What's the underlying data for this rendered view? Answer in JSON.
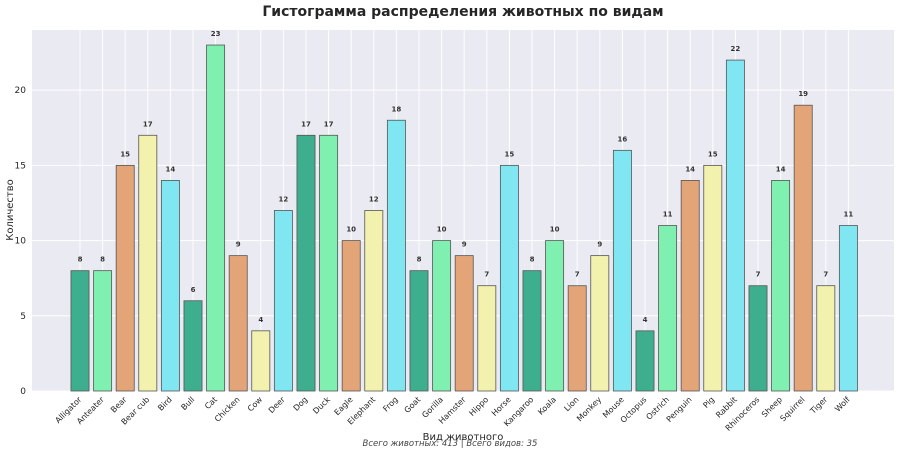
{
  "chart_data": {
    "type": "bar",
    "title": "Гистограмма распределения животных по видам",
    "xlabel": "Вид животного",
    "ylabel": "Количество",
    "footer": "Всего животных: 413 | Всего видов: 35",
    "ylim": [
      0,
      24
    ],
    "yticks": [
      0,
      5,
      10,
      15,
      20
    ],
    "grid": true,
    "categories": [
      "Alligator",
      "Anteater",
      "Bear",
      "Bear cub",
      "Bird",
      "Bull",
      "Cat",
      "Chicken",
      "Cow",
      "Deer",
      "Dog",
      "Duck",
      "Eagle",
      "Elephant",
      "Frog",
      "Goat",
      "Gorilla",
      "Hamster",
      "Hippo",
      "Horse",
      "Kangaroo",
      "Koala",
      "Lion",
      "Monkey",
      "Mouse",
      "Octopus",
      "Ostrich",
      "Penguin",
      "Pig",
      "Rabbit",
      "Rhinoceros",
      "Sheep",
      "Squirrel",
      "Tiger",
      "Wolf"
    ],
    "values": [
      8,
      8,
      15,
      17,
      14,
      6,
      23,
      9,
      4,
      12,
      17,
      17,
      10,
      12,
      18,
      8,
      10,
      9,
      7,
      15,
      8,
      10,
      7,
      9,
      16,
      4,
      11,
      14,
      15,
      22,
      7,
      14,
      19,
      7,
      11
    ],
    "palette": [
      "#3daf8f",
      "#7ff0b0",
      "#e3a477",
      "#f2f2ae",
      "#80e6f2"
    ],
    "bar_edge_color": "#555555",
    "background_color": "#eaeaf2"
  }
}
